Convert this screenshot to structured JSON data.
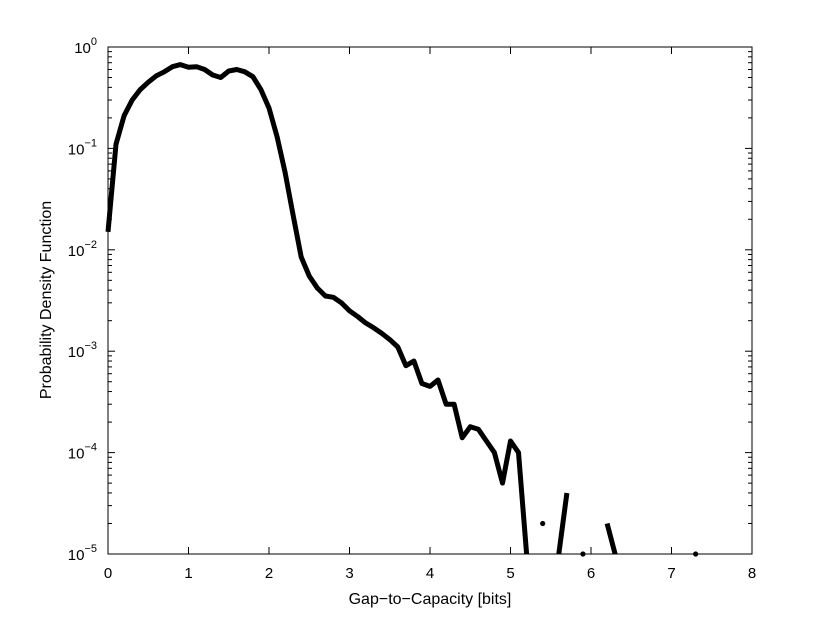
{
  "chart_data": {
    "type": "line",
    "title": "",
    "xlabel": "Gap−to−Capacity [bits]",
    "ylabel": "Probability Density Function",
    "xlim": [
      0,
      8
    ],
    "ylim": [
      1e-05,
      1
    ],
    "yscale": "log",
    "grid": false,
    "x_ticks": [
      "0",
      "1",
      "2",
      "3",
      "4",
      "5",
      "6",
      "7",
      "8"
    ],
    "y_ticks": [
      {
        "base": "10",
        "exp": "0",
        "value": 1
      },
      {
        "base": "10",
        "exp": "−1",
        "value": 0.1
      },
      {
        "base": "10",
        "exp": "−2",
        "value": 0.01
      },
      {
        "base": "10",
        "exp": "−3",
        "value": 0.001
      },
      {
        "base": "10",
        "exp": "−4",
        "value": 0.0001
      },
      {
        "base": "10",
        "exp": "−5",
        "value": 1e-05
      }
    ],
    "colors": {
      "line": "#000000",
      "axes": "#000000"
    },
    "series": [
      {
        "segments": [
          [
            [
              0.0,
              0.015
            ],
            [
              0.1,
              0.11
            ],
            [
              0.2,
              0.21
            ],
            [
              0.3,
              0.3
            ],
            [
              0.4,
              0.38
            ],
            [
              0.5,
              0.45
            ],
            [
              0.6,
              0.52
            ],
            [
              0.7,
              0.57
            ],
            [
              0.8,
              0.64
            ],
            [
              0.9,
              0.67
            ],
            [
              1.0,
              0.63
            ],
            [
              1.1,
              0.64
            ],
            [
              1.2,
              0.6
            ],
            [
              1.3,
              0.53
            ],
            [
              1.4,
              0.5
            ],
            [
              1.5,
              0.58
            ],
            [
              1.6,
              0.6
            ],
            [
              1.7,
              0.57
            ],
            [
              1.8,
              0.51
            ],
            [
              1.9,
              0.38
            ],
            [
              2.0,
              0.25
            ],
            [
              2.1,
              0.13
            ],
            [
              2.2,
              0.058
            ],
            [
              2.3,
              0.022
            ],
            [
              2.4,
              0.0085
            ],
            [
              2.5,
              0.0055
            ],
            [
              2.6,
              0.0042
            ],
            [
              2.7,
              0.0035
            ],
            [
              2.8,
              0.0034
            ],
            [
              2.9,
              0.003
            ],
            [
              3.0,
              0.0025
            ],
            [
              3.1,
              0.0022
            ],
            [
              3.2,
              0.0019
            ],
            [
              3.3,
              0.0017
            ],
            [
              3.4,
              0.0015
            ],
            [
              3.5,
              0.0013
            ],
            [
              3.6,
              0.0011
            ],
            [
              3.7,
              0.00072
            ],
            [
              3.8,
              0.0008
            ],
            [
              3.9,
              0.00048
            ],
            [
              4.0,
              0.00045
            ],
            [
              4.1,
              0.00052
            ],
            [
              4.2,
              0.0003
            ],
            [
              4.3,
              0.0003
            ],
            [
              4.4,
              0.00014
            ],
            [
              4.5,
              0.00018
            ],
            [
              4.6,
              0.00017
            ],
            [
              4.7,
              0.00013
            ],
            [
              4.8,
              0.0001
            ],
            [
              4.9,
              5e-05
            ],
            [
              5.0,
              0.00013
            ],
            [
              5.1,
              0.0001
            ],
            [
              5.2,
              1e-05
            ]
          ],
          [
            [
              5.6,
              1e-05
            ],
            [
              5.7,
              4e-05
            ]
          ],
          [
            [
              6.2,
              2e-05
            ],
            [
              6.3,
              1e-05
            ]
          ]
        ],
        "points": [
          [
            5.4,
            2e-05
          ],
          [
            5.9,
            1e-05
          ],
          [
            7.3,
            1e-05
          ]
        ]
      }
    ]
  }
}
